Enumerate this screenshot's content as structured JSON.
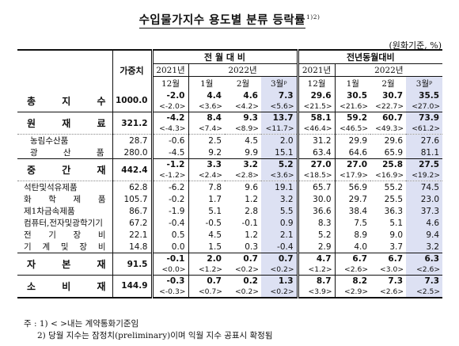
{
  "title": "수입물가지수 용도별 분류 등락률",
  "title_note": "1)2)",
  "unit": "(원화기준, %)",
  "header": {
    "weight": "가중치",
    "group_mom": "전 월 대 비",
    "group_yoy": "전년동월대비",
    "y2021": "2021년",
    "y2022": "2022년",
    "months": [
      "12월",
      "1월",
      "2월",
      "3월ᵖ",
      "12월",
      "1월",
      "2월",
      "3월ᵖ"
    ]
  },
  "rows": [
    {
      "label": "총 지 수",
      "type": "main",
      "weight": "1000.0",
      "vals": [
        "-2.0",
        "4.4",
        "4.6",
        "7.3",
        "29.6",
        "30.5",
        "30.7",
        "35.5"
      ],
      "subs": [
        "<-2.0>",
        "<3.6>",
        "<4.2>",
        "<5.6>",
        "<21.5>",
        "<21.6>",
        "<22.7>",
        "<27.0>"
      ]
    },
    {
      "label": "원 재 료",
      "type": "main",
      "weight": "321.2",
      "vals": [
        "-4.2",
        "8.4",
        "9.3",
        "13.7",
        "58.1",
        "59.2",
        "60.7",
        "73.9"
      ],
      "subs": [
        "<-4.3>",
        "<7.4>",
        "<8.9>",
        "<11.7>",
        "<46.4>",
        "<46.5>",
        "<49.3>",
        "<61.2>"
      ]
    },
    {
      "label": "농림수산품",
      "type": "sub",
      "weight": "28.7",
      "vals": [
        "-0.6",
        "2.5",
        "4.5",
        "2.0",
        "31.2",
        "29.9",
        "29.6",
        "27.6"
      ]
    },
    {
      "label": "광 산 품",
      "type": "sub",
      "weight": "280.0",
      "vals": [
        "-4.5",
        "9.2",
        "9.9",
        "15.1",
        "63.4",
        "64.6",
        "65.9",
        "81.1"
      ]
    },
    {
      "label": "중 간 재",
      "type": "main",
      "weight": "442.4",
      "vals": [
        "-1.2",
        "3.3",
        "3.2",
        "5.2",
        "27.0",
        "27.0",
        "25.8",
        "27.5"
      ],
      "subs": [
        "<-1.2>",
        "<2.4>",
        "<2.8>",
        "<3.6>",
        "<18.5>",
        "<17.9>",
        "<16.9>",
        "<19.2>"
      ]
    },
    {
      "label": "석탄및석유제품",
      "type": "sub2",
      "weight": "62.8",
      "vals": [
        "-6.2",
        "7.8",
        "9.6",
        "19.1",
        "65.7",
        "56.9",
        "55.2",
        "74.5"
      ]
    },
    {
      "label": "화 학 제 품",
      "type": "sub2",
      "weight": "105.7",
      "vals": [
        "-0.2",
        "1.7",
        "1.2",
        "3.2",
        "30.0",
        "29.7",
        "25.5",
        "23.0"
      ]
    },
    {
      "label": "제1차금속제품",
      "type": "sub2",
      "weight": "86.7",
      "vals": [
        "-1.9",
        "5.1",
        "2.8",
        "5.5",
        "36.6",
        "38.4",
        "36.3",
        "37.3"
      ]
    },
    {
      "label": "컴퓨터,전자및광학기기",
      "type": "sub2",
      "weight": "67.2",
      "vals": [
        "-0.4",
        "-0.5",
        "-0.1",
        "0.9",
        "8.3",
        "7.5",
        "5.1",
        "4.6"
      ]
    },
    {
      "label": "전 기 장 비",
      "type": "sub2",
      "weight": "22.1",
      "vals": [
        "0.5",
        "4.5",
        "1.2",
        "2.1",
        "5.2",
        "8.9",
        "9.0",
        "9.4"
      ]
    },
    {
      "label": "기 계 및 장 비",
      "type": "sub2",
      "weight": "14.8",
      "vals": [
        "0.0",
        "1.5",
        "0.3",
        "-0.4",
        "2.9",
        "4.0",
        "3.7",
        "3.2"
      ]
    },
    {
      "label": "자 본 재",
      "type": "main",
      "weight": "91.5",
      "vals": [
        "-0.1",
        "2.0",
        "0.7",
        "0.7",
        "4.7",
        "6.7",
        "6.7",
        "6.3"
      ],
      "subs": [
        "<0.0>",
        "<1.2>",
        "<0.2>",
        "<0.2>",
        "<1.2>",
        "<2.6>",
        "<3.0>",
        "<2.6>"
      ]
    },
    {
      "label": "소 비 재",
      "type": "main",
      "weight": "144.9",
      "vals": [
        "-0.3",
        "0.7",
        "0.2",
        "1.3",
        "8.7",
        "8.2",
        "7.3",
        "7.3"
      ],
      "subs": [
        "<-0.3>",
        "<0.7>",
        "<0.2>",
        "<0.2>",
        "<3.9>",
        "<2.9>",
        "<2.6>",
        "<2.5>"
      ]
    }
  ],
  "notes": [
    "주 : 1) < >내는 계약통화기준임",
    "2) 당월 지수는 잠정치(preliminary)이며 익월 지수 공표시 확정됨"
  ]
}
